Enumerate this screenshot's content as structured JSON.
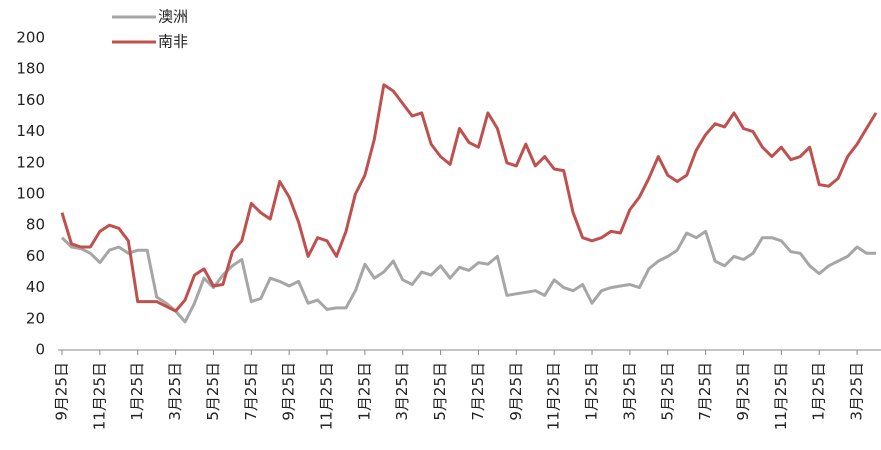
{
  "chart_data": {
    "type": "line",
    "categories": [
      "9月25日",
      null,
      null,
      null,
      "11月25日",
      null,
      null,
      null,
      "1月25日",
      null,
      null,
      null,
      "3月25日",
      null,
      null,
      null,
      "5月25日",
      null,
      null,
      null,
      "7月25日",
      null,
      null,
      null,
      "9月25日",
      null,
      null,
      null,
      "11月25日",
      null,
      null,
      null,
      "1月25日",
      null,
      null,
      null,
      "3月25日",
      null,
      null,
      null,
      "5月25日",
      null,
      null,
      null,
      "7月25日",
      null,
      null,
      null,
      "9月25日",
      null,
      null,
      null,
      "11月25日",
      null,
      null,
      null,
      "1月25日",
      null,
      null,
      null,
      "3月25日",
      null,
      null,
      null,
      "5月25日",
      null,
      null,
      null,
      "7月25日",
      null,
      null,
      null,
      "9月25日",
      null,
      null,
      null,
      "11月25日",
      null,
      null,
      null,
      "1月25日",
      null,
      null,
      null,
      "3月25日",
      null,
      null
    ],
    "series": [
      {
        "name": "澳洲",
        "color": "#a6a6a6",
        "values": [
          72,
          66,
          65,
          62,
          56,
          64,
          66,
          62,
          64,
          64,
          34,
          30,
          25,
          18,
          30,
          46,
          40,
          48,
          54,
          58,
          31,
          33,
          46,
          44,
          41,
          44,
          30,
          32,
          26,
          27,
          27,
          38,
          55,
          46,
          50,
          57,
          45,
          42,
          50,
          48,
          54,
          46,
          53,
          51,
          56,
          55,
          60,
          35,
          36,
          37,
          38,
          35,
          45,
          40,
          38,
          42,
          30,
          38,
          40,
          41,
          42,
          40,
          52,
          57,
          60,
          64,
          75,
          72,
          76,
          57,
          54,
          60,
          58,
          62,
          72,
          72,
          70,
          63,
          62,
          54,
          49,
          54,
          57,
          60,
          66,
          62,
          62
        ]
      },
      {
        "name": "南非",
        "color": "#c0504d",
        "values": [
          88,
          68,
          66,
          66,
          76,
          80,
          78,
          70,
          31,
          31,
          31,
          28,
          25,
          32,
          48,
          52,
          41,
          42,
          63,
          70,
          94,
          88,
          84,
          108,
          98,
          82,
          60,
          72,
          70,
          60,
          76,
          100,
          112,
          135,
          170,
          166,
          158,
          150,
          152,
          132,
          124,
          119,
          142,
          133,
          130,
          152,
          142,
          120,
          118,
          132,
          118,
          124,
          116,
          115,
          88,
          72,
          70,
          72,
          76,
          75,
          90,
          98,
          110,
          124,
          112,
          108,
          112,
          128,
          138,
          145,
          143,
          152,
          142,
          140,
          130,
          124,
          130,
          122,
          124,
          130,
          106,
          105,
          110,
          124,
          132,
          142,
          152
        ]
      }
    ],
    "ylim": [
      0,
      200
    ],
    "yticks": [
      0,
      20,
      40,
      60,
      80,
      100,
      120,
      140,
      160,
      180,
      200
    ],
    "legend": "top-left",
    "grid": false
  }
}
